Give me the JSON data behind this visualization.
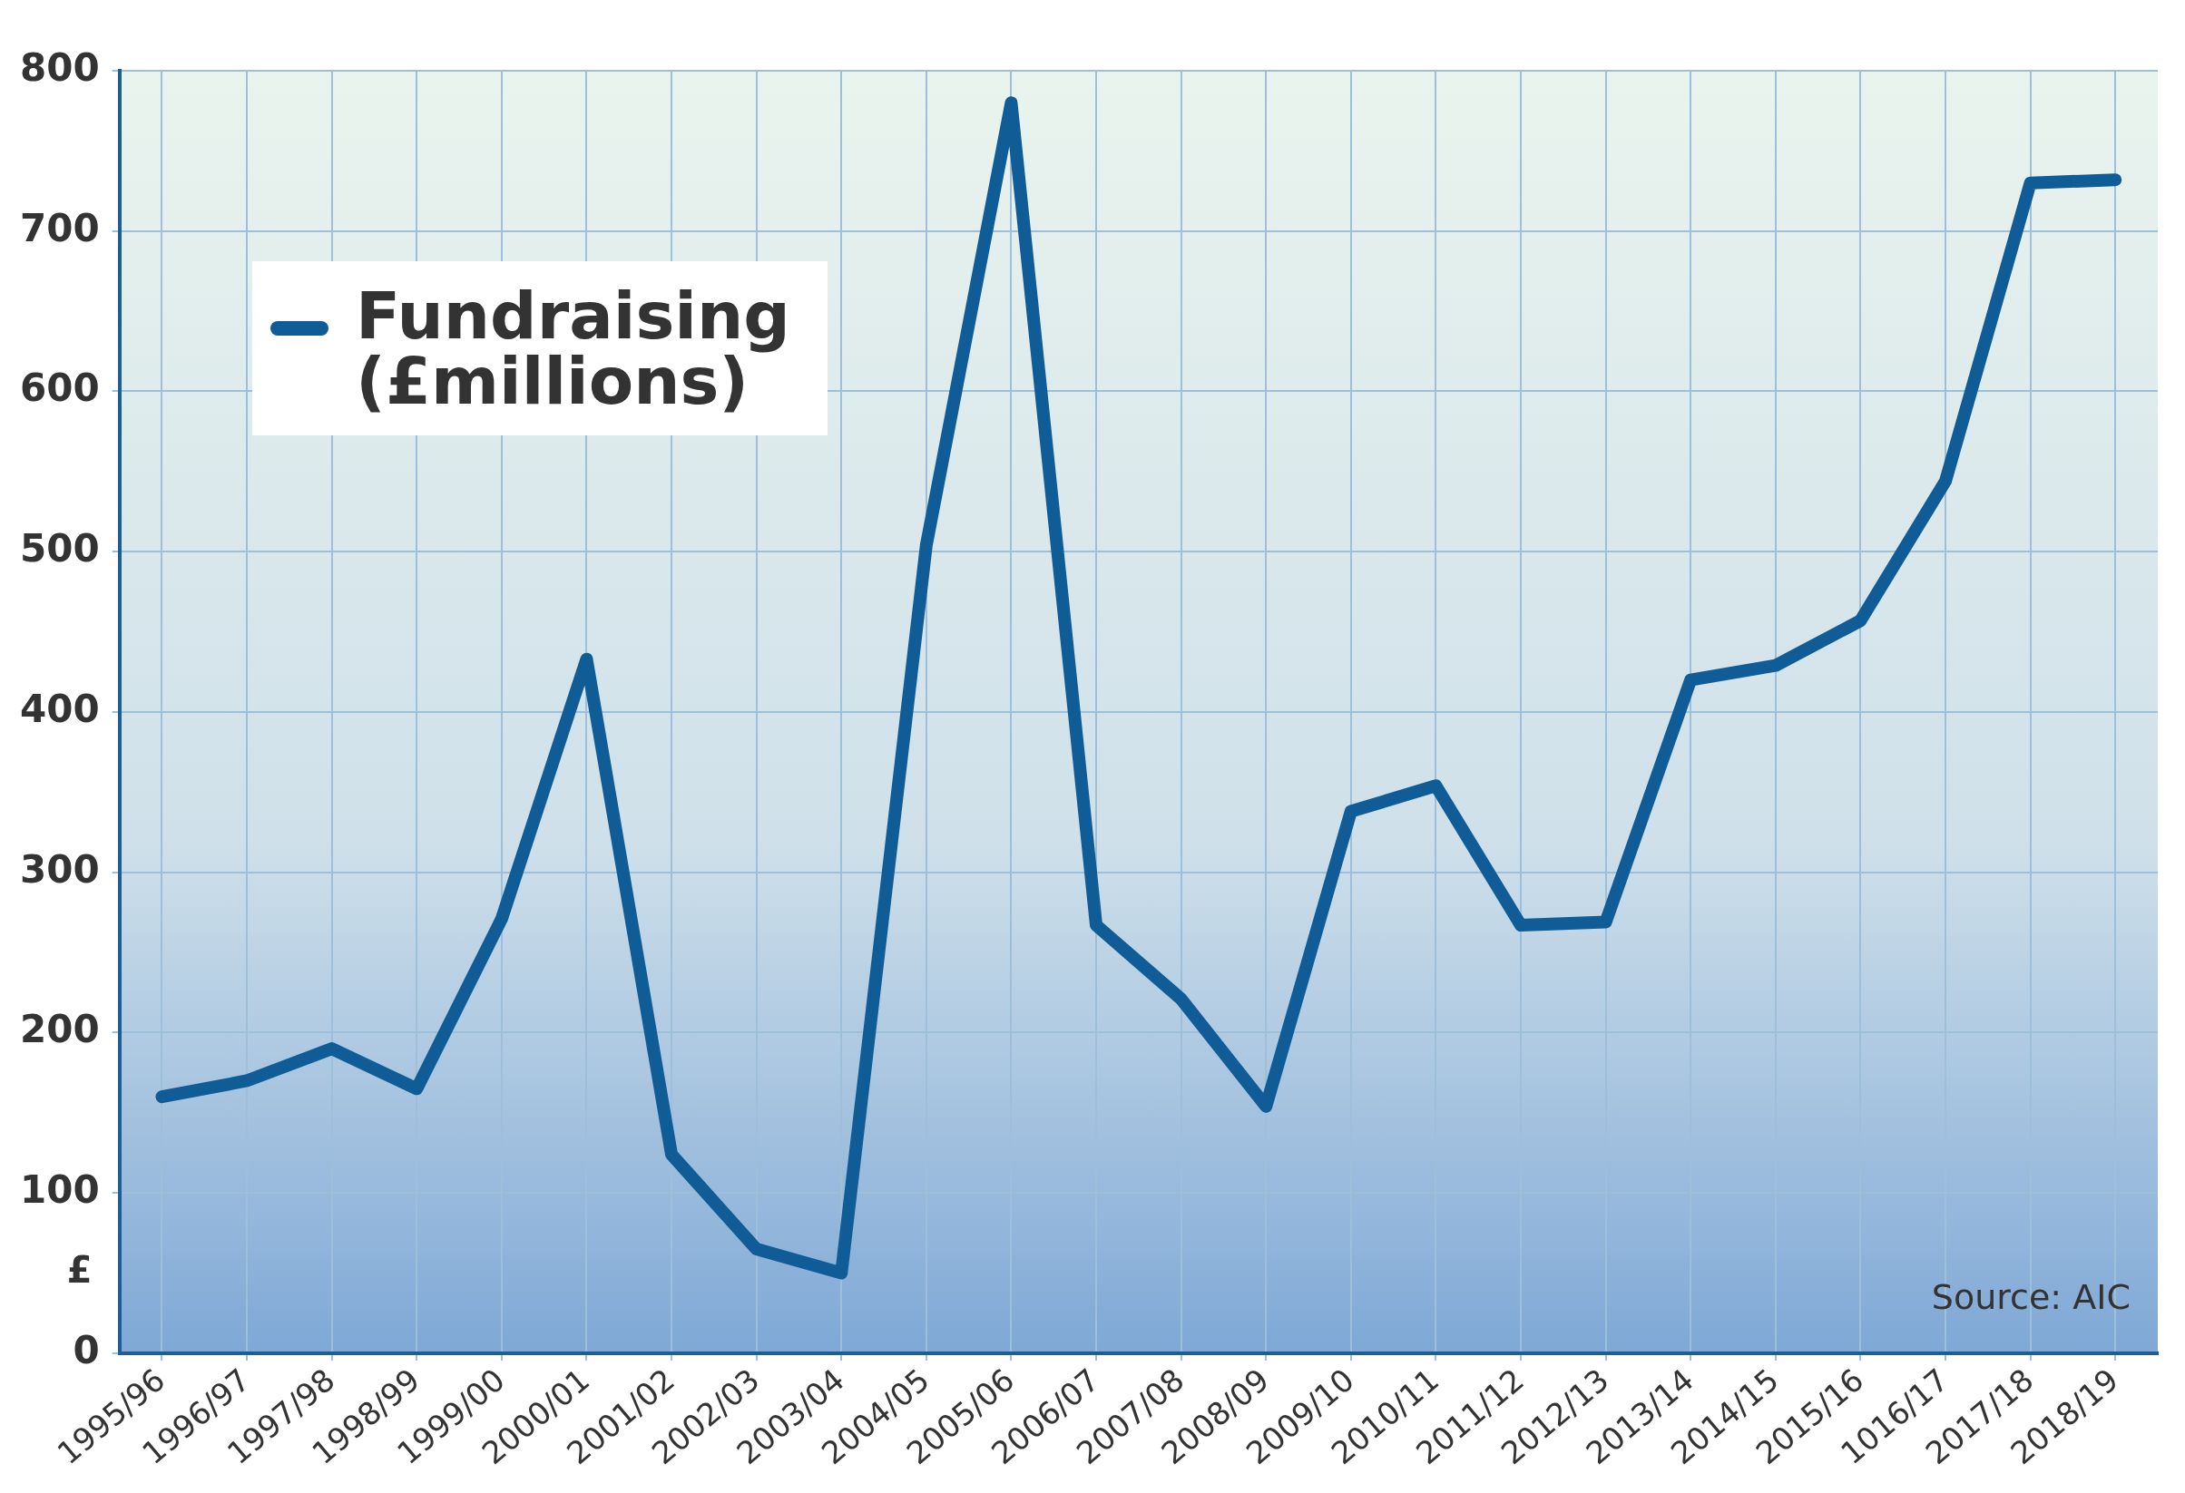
{
  "chart_data": {
    "type": "line",
    "ylabel": "£",
    "categories": [
      "1995/96",
      "1996/97",
      "1997/98",
      "1998/99",
      "1999/00",
      "2000/01",
      "2001/02",
      "2002/03",
      "2003/04",
      "2004/05",
      "2005/06",
      "2006/07",
      "2007/08",
      "2008/09",
      "2009/10",
      "2010/11",
      "2011/12",
      "2012/13",
      "2013/14",
      "2014/15",
      "2015/16",
      "1016/17",
      "2017/18",
      "2018/19"
    ],
    "series": [
      {
        "name": "Fundraising (£millions)",
        "color": "#0f5c97",
        "values": [
          160,
          170,
          190,
          165,
          271,
          433,
          124,
          65,
          50,
          504,
          780,
          267,
          221,
          154,
          338,
          354,
          267,
          269,
          420,
          429,
          457,
          544,
          730,
          732
        ]
      }
    ],
    "ylim": [
      0,
      800
    ],
    "yticks": [
      0,
      100,
      200,
      300,
      400,
      500,
      600,
      700,
      800
    ],
    "grid": true,
    "legend": "top left",
    "marker": "none",
    "line_style": "solid",
    "annotations": [
      "Source: AIC"
    ]
  }
}
